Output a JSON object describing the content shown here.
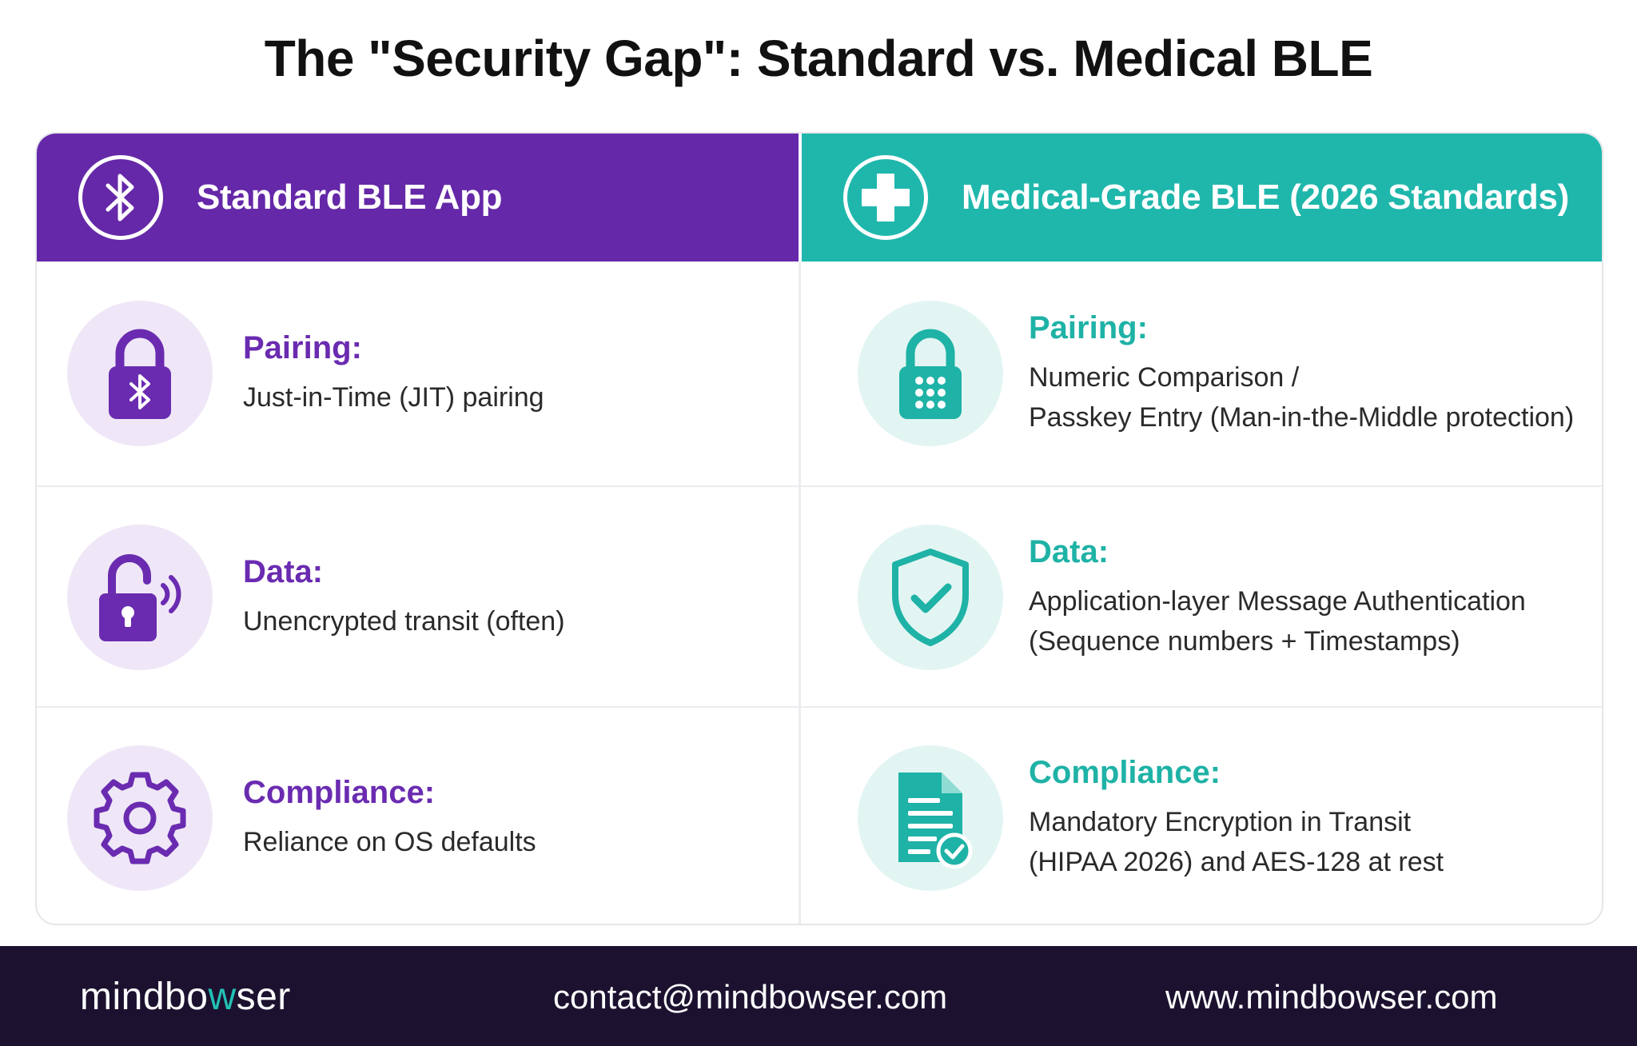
{
  "title": "The \"Security Gap\": Standard vs. Medical BLE",
  "colors": {
    "standard": "#6528a8",
    "medical": "#1fb7ac",
    "footer_bg": "#1c1230"
  },
  "columns": {
    "standard": {
      "header": "Standard BLE App",
      "icon": "bluetooth-icon",
      "rows": [
        {
          "label": "Pairing:",
          "lines": [
            "Just-in-Time (JIT) pairing"
          ],
          "icon": "padlock-bluetooth-icon"
        },
        {
          "label": "Data:",
          "lines": [
            "Unencrypted transit (often)"
          ],
          "icon": "unlocked-padlock-icon"
        },
        {
          "label": "Compliance:",
          "lines": [
            "Reliance on OS defaults"
          ],
          "icon": "gear-icon"
        }
      ]
    },
    "medical": {
      "header": "Medical-Grade BLE (2026 Standards)",
      "icon": "medical-cross-icon",
      "rows": [
        {
          "label": "Pairing:",
          "lines": [
            "Numeric Comparison /",
            "Passkey Entry (Man-in-the-Middle protection)"
          ],
          "icon": "padlock-keypad-icon"
        },
        {
          "label": "Data:",
          "lines": [
            "Application-layer Message Authentication",
            "(Sequence numbers + Timestamps)"
          ],
          "icon": "shield-check-icon"
        },
        {
          "label": "Compliance:",
          "lines": [
            "Mandatory Encryption in Transit",
            "(HIPAA 2026) and AES-128 at rest"
          ],
          "icon": "document-check-icon"
        }
      ]
    }
  },
  "footer": {
    "brand_pre": "mindbo",
    "brand_w": "w",
    "brand_post": "ser",
    "email": "contact@mindbowser.com",
    "website": "www.mindbowser.com"
  }
}
